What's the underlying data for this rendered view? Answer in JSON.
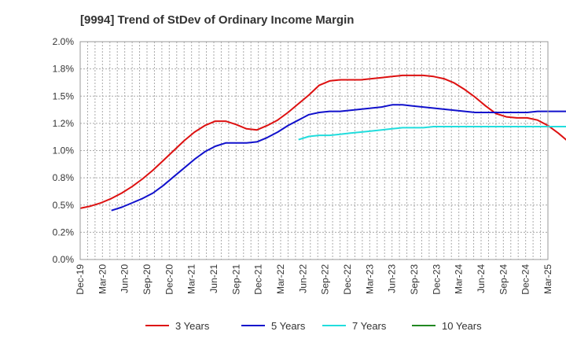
{
  "chart_data": {
    "type": "line",
    "title": "[9994]  Trend of StDev of Ordinary Income Margin",
    "xlabel": "",
    "ylabel": "",
    "y_ticks": [
      "0.0%",
      "0.2%",
      "0.5%",
      "0.8%",
      "1.0%",
      "1.2%",
      "1.5%",
      "1.8%",
      "2.0%"
    ],
    "ylim": [
      0,
      2.0
    ],
    "x_ticks": [
      "Dec-19",
      "Mar-20",
      "Jun-20",
      "Sep-20",
      "Dec-20",
      "Mar-21",
      "Jun-21",
      "Sep-21",
      "Dec-21",
      "Mar-22",
      "Jun-22",
      "Sep-22",
      "Dec-22",
      "Mar-23",
      "Jun-23",
      "Sep-23",
      "Dec-23",
      "Mar-24",
      "Jun-24",
      "Sep-24",
      "Dec-24",
      "Mar-25"
    ],
    "grid": true,
    "legend_position": "bottom",
    "series": [
      {
        "name": "3 Years",
        "color": "#dd1111",
        "values": [
          0.47,
          0.49,
          0.52,
          0.56,
          0.61,
          0.67,
          0.74,
          0.82,
          0.91,
          1.0,
          1.09,
          1.17,
          1.23,
          1.27,
          1.27,
          1.24,
          1.2,
          1.19,
          1.23,
          1.28,
          1.35,
          1.43,
          1.51,
          1.6,
          1.64,
          1.65,
          1.65,
          1.65,
          1.66,
          1.67,
          1.68,
          1.69,
          1.69,
          1.69,
          1.68,
          1.66,
          1.62,
          1.56,
          1.49,
          1.41,
          1.34,
          1.31,
          1.3,
          1.3,
          1.28,
          1.23,
          1.16,
          1.08
        ]
      },
      {
        "name": "5 Years",
        "color": "#1111cc",
        "values": [
          null,
          null,
          null,
          0.45,
          0.48,
          0.52,
          0.56,
          0.61,
          0.68,
          0.76,
          0.84,
          0.92,
          0.99,
          1.04,
          1.07,
          1.07,
          1.07,
          1.08,
          1.12,
          1.17,
          1.23,
          1.28,
          1.33,
          1.35,
          1.36,
          1.36,
          1.37,
          1.38,
          1.39,
          1.4,
          1.42,
          1.42,
          1.41,
          1.4,
          1.39,
          1.38,
          1.37,
          1.36,
          1.35,
          1.35,
          1.35,
          1.35,
          1.35,
          1.35,
          1.36,
          1.36,
          1.36,
          1.36
        ]
      },
      {
        "name": "7 Years",
        "color": "#22dddd",
        "values": [
          null,
          null,
          null,
          null,
          null,
          null,
          null,
          null,
          null,
          null,
          null,
          null,
          null,
          null,
          null,
          null,
          null,
          null,
          null,
          null,
          null,
          1.1,
          1.13,
          1.14,
          1.14,
          1.15,
          1.16,
          1.17,
          1.18,
          1.19,
          1.2,
          1.21,
          1.21,
          1.21,
          1.22,
          1.22,
          1.22,
          1.22,
          1.22,
          1.22,
          1.22,
          1.22,
          1.22,
          1.22,
          1.22,
          1.22,
          1.22,
          1.22
        ]
      },
      {
        "name": "10 Years",
        "color": "#228822",
        "values": []
      }
    ]
  }
}
